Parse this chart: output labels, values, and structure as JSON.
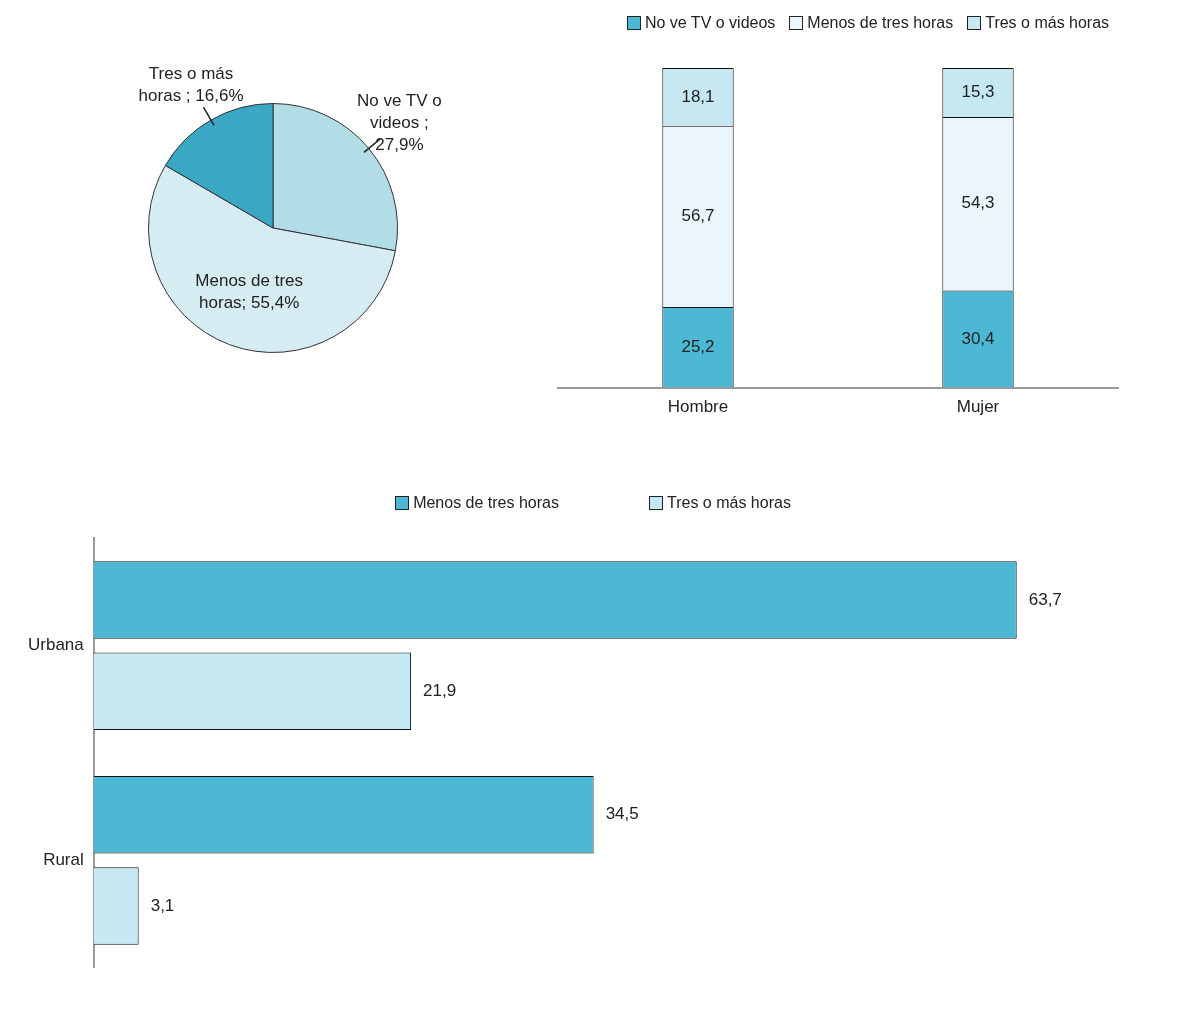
{
  "chart_data": [
    {
      "type": "pie",
      "categories": [
        "No ve TV o videos",
        "Menos de tres horas",
        "Tres o más horas"
      ],
      "values": [
        27.9,
        55.4,
        16.6
      ],
      "colors": [
        "#b3dde6",
        "#d6ecf3",
        "#3aa8c4"
      ],
      "value_labels": [
        " ; 27,9%",
        "; 55,4%",
        " ; 16,6%"
      ],
      "legend": false
    },
    {
      "type": "bar",
      "stacked": true,
      "categories": [
        "Hombre",
        "Mujer"
      ],
      "legend": "top",
      "ylim": [
        0,
        100
      ],
      "series": [
        {
          "name": "No ve TV o videos",
          "color": "#4db8d4",
          "values": [
            25.2,
            30.4
          ],
          "value_labels": [
            "25,2",
            "30,4"
          ]
        },
        {
          "name": "Menos de tres horas",
          "color": "#eaf6fb",
          "values": [
            56.7,
            54.3
          ],
          "value_labels": [
            "56,7",
            "54,3"
          ]
        },
        {
          "name": "Tres o más horas",
          "color": "#c5e8f3",
          "values": [
            18.1,
            15.3
          ],
          "value_labels": [
            "18,1",
            "15,3"
          ]
        }
      ]
    },
    {
      "type": "bar",
      "orientation": "horizontal",
      "categories": [
        "Urbana",
        "Rural"
      ],
      "legend": "top",
      "series": [
        {
          "name": "Menos de tres horas",
          "color": "#4db8d4",
          "values": [
            63.7,
            34.5
          ],
          "value_labels": [
            "63,7",
            "34,5"
          ]
        },
        {
          "name": "Tres o más horas",
          "color": "#c5e8f3",
          "values": [
            21.9,
            3.1
          ],
          "value_labels": [
            "21,9",
            "3,1"
          ]
        }
      ]
    }
  ]
}
